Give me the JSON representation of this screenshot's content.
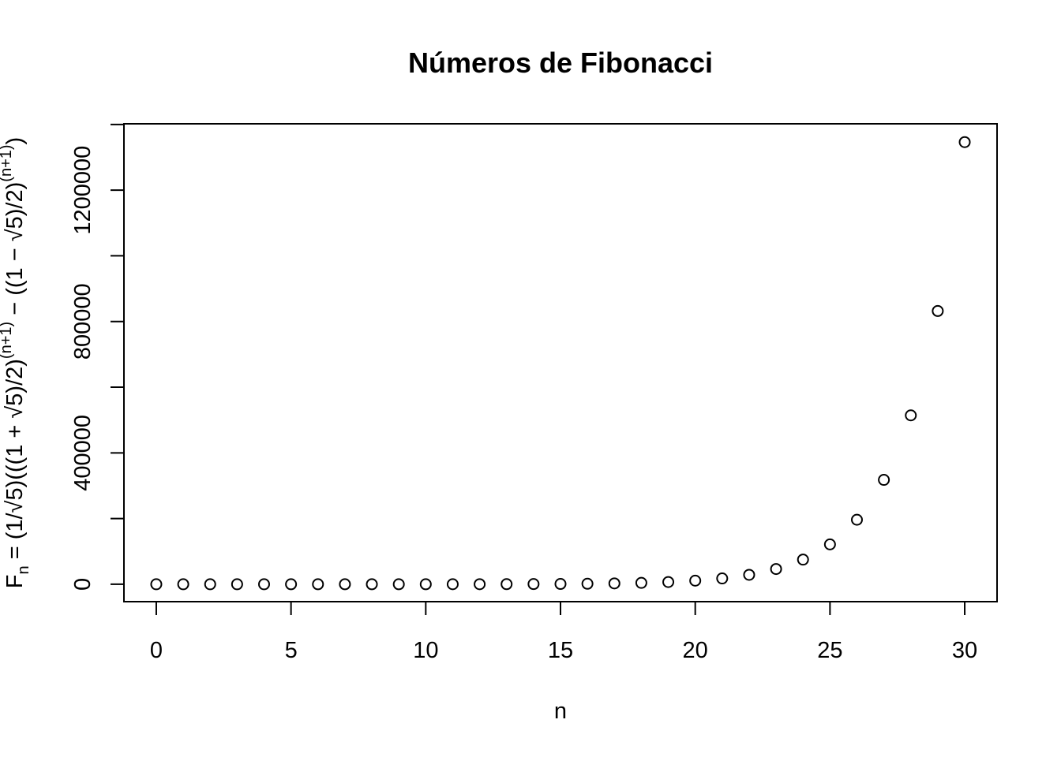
{
  "chart_data": {
    "type": "scatter",
    "title": "Números de Fibonacci",
    "xlabel": "n",
    "ylabel": {
      "base": "F",
      "sub": "n",
      "lead": " = (1/√5)(((1 + √5)/2)",
      "sup1": "(n+1)",
      "mid": " − ((1 − √5)/2)",
      "sup2": "(n+1)",
      "tail": ")"
    },
    "xlim": [
      -1.2,
      31.2
    ],
    "ylim": [
      -53000,
      1402000
    ],
    "xticks": [
      0,
      5,
      10,
      15,
      20,
      25,
      30
    ],
    "yticks": [
      0,
      400000,
      800000,
      1200000
    ],
    "grid": false,
    "marker": "open-circle",
    "color": "#000000",
    "x": [
      0,
      1,
      2,
      3,
      4,
      5,
      6,
      7,
      8,
      9,
      10,
      11,
      12,
      13,
      14,
      15,
      16,
      17,
      18,
      19,
      20,
      21,
      22,
      23,
      24,
      25,
      26,
      27,
      28,
      29,
      30
    ],
    "y": [
      1,
      1,
      2,
      3,
      5,
      8,
      13,
      21,
      34,
      55,
      89,
      144,
      233,
      377,
      610,
      987,
      1597,
      2584,
      4181,
      6765,
      10946,
      17711,
      28657,
      46368,
      75025,
      121393,
      196418,
      317811,
      514229,
      832040,
      1346269
    ]
  }
}
